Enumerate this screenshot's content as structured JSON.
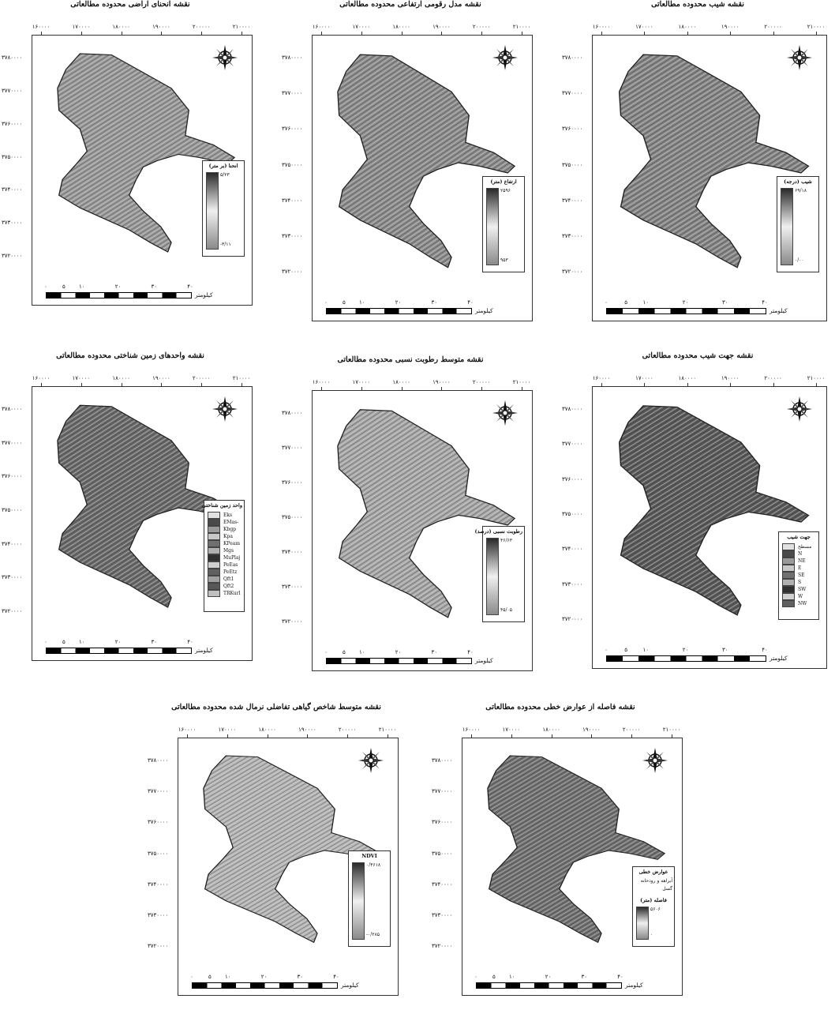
{
  "x_ticks": [
    "۱۶۰۰۰۰",
    "۱۷۰۰۰۰",
    "۱۸۰۰۰۰",
    "۱۹۰۰۰۰",
    "۲۰۰۰۰۰",
    "۲۱۰۰۰۰"
  ],
  "y_ticks": [
    "۳۷۸۰۰۰۰",
    "۳۷۷۰۰۰۰",
    "۳۷۶۰۰۰۰",
    "۳۷۵۰۰۰۰",
    "۳۷۴۰۰۰۰",
    "۳۷۳۰۰۰۰",
    "۳۷۲۰۰۰۰"
  ],
  "scale": {
    "ticks": [
      "۰",
      "۵",
      "۱۰",
      "۲۰",
      "۳۰",
      "۴۰"
    ],
    "unit": "کیلومتر"
  },
  "panels": [
    {
      "id": "curvature",
      "title": "نقشه انحنای اراضی محدوده مطالعاتی",
      "legend": {
        "title": "انحنا (بر متر)",
        "max": "۵/۲۳",
        "min": "-۳/۱۱"
      }
    },
    {
      "id": "dem",
      "title": "نقشه مدل رقومی ارتفاعی محدوده مطالعاتی",
      "legend": {
        "title": "ارتفاع (متر)",
        "max": "۲۵۹۶",
        "min": "۹۵۳"
      }
    },
    {
      "id": "slope",
      "title": "نقشه شیب محدوده مطالعاتی",
      "legend": {
        "title": "شیب (درجه)",
        "max": "۶۹/۱۸",
        "min": "۰/۰۰"
      }
    },
    {
      "id": "geology",
      "title": "نقشه واحدهای زمین شناختی محدوده مطالعاتی",
      "legend": {
        "title": "واحد زمین شناختی",
        "classes": [
          "Eks",
          "EMas-sb",
          "Kbgp",
          "Kpa",
          "KPeam",
          "Mgs",
          "MuPlaj",
          "PeEas",
          "PeEtz",
          "Qft1",
          "Qft2",
          "TRKurl"
        ]
      }
    },
    {
      "id": "humidity",
      "title": "نقشه متوسط رطوبت نسبی محدوده مطالعاتی",
      "legend": {
        "title": "رطوبت نسبی (درصد)",
        "max": "۴۶/۶۳",
        "min": "۴۵/۰۵"
      }
    },
    {
      "id": "aspect",
      "title": "نقشه جهت شیب محدوده مطالعاتی",
      "legend": {
        "title": "جهت شیب",
        "classes": [
          "مسطح",
          "N",
          "NE",
          "E",
          "SE",
          "S",
          "SW",
          "W",
          "NW"
        ]
      }
    },
    {
      "id": "ndvi",
      "title": "نقشه متوسط شاخص گیاهی تفاضلی نرمال شده محدوده مطالعاتی",
      "legend": {
        "title": "NDVI",
        "max": "۰/۴۶۱۸",
        "min": "-۰/۲۸۵"
      }
    },
    {
      "id": "distance",
      "title": "نقشه فاصله از عوارض خطی محدوده مطالعاتی",
      "legend": {
        "title": "عوارض خطی",
        "items": [
          "آبراهه و رودخانه",
          "گسل"
        ],
        "subtitle": "فاصله (متر)",
        "max": "۵۶۰۶",
        "min": "۰"
      }
    }
  ],
  "colors": {
    "ramp_dark": "#2a2a2a",
    "ramp_light": "#f0f0f0",
    "map_mid": "#8a8a8a"
  }
}
